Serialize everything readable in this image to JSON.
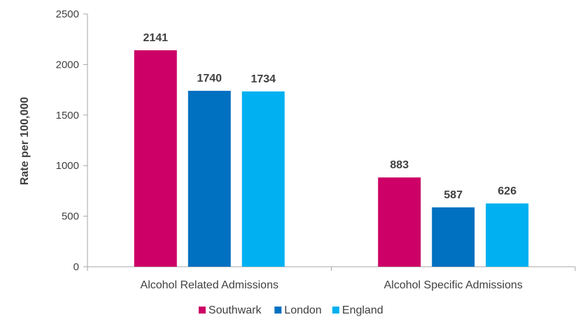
{
  "chart_data": {
    "type": "bar",
    "title": "",
    "xlabel": "",
    "ylabel": "Rate per 100,000",
    "ylim": [
      0,
      2500
    ],
    "yticks": [
      0,
      500,
      1000,
      1500,
      2000,
      2500
    ],
    "grid": false,
    "legend_position": "bottom",
    "categories": [
      "Alcohol Related Admissions",
      "Alcohol Specific Admissions"
    ],
    "series": [
      {
        "name": "Southwark",
        "color": "#cc0066",
        "values": [
          2141,
          883
        ]
      },
      {
        "name": "London",
        "color": "#0070c0",
        "values": [
          1740,
          587
        ]
      },
      {
        "name": "England",
        "color": "#00b0f0",
        "values": [
          1734,
          626
        ]
      }
    ]
  }
}
